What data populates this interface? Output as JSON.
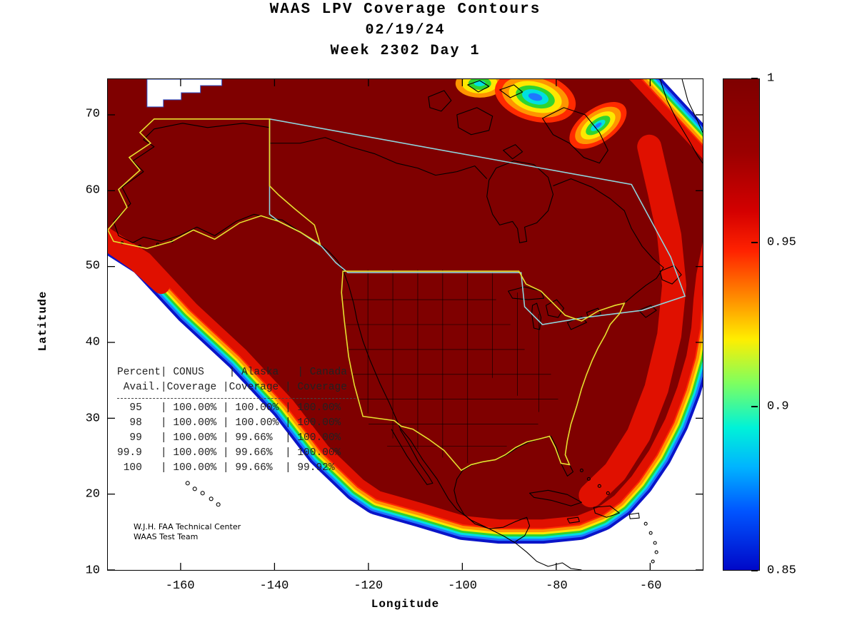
{
  "title": {
    "line1": "WAAS LPV Coverage Contours",
    "line2": "02/19/24",
    "line3": "Week 2302 Day 1"
  },
  "axes": {
    "x_label": "Longitude",
    "y_label": "Latitude",
    "x_ticks": [
      -160,
      -140,
      -120,
      -100,
      -80,
      -60
    ],
    "y_ticks": [
      10,
      20,
      30,
      40,
      50,
      60,
      70
    ]
  },
  "colorbar": {
    "tick_labels": [
      "1",
      "0.95",
      "0.9",
      "0.85"
    ],
    "max": 1,
    "min": 0.85
  },
  "availability_table": {
    "headers": [
      [
        "Percent",
        "CONUS",
        "Alaska",
        "Canada"
      ],
      [
        "Avail.",
        "Coverage",
        "Coverage",
        "Coverage"
      ]
    ],
    "rows": [
      [
        "95",
        "100.00%",
        "100.00%",
        "100.00%"
      ],
      [
        "98",
        "100.00%",
        "100.00%",
        "100.00%"
      ],
      [
        "99",
        "100.00%",
        "99.66%",
        "100.00%"
      ],
      [
        "99.9",
        "100.00%",
        "99.66%",
        "100.00%"
      ],
      [
        "100",
        "100.00%",
        "99.66%",
        "99.92%"
      ]
    ]
  },
  "credit": {
    "line1": "W.J.H. FAA Technical Center",
    "line2": "WAAS Test Team"
  },
  "chart_data": {
    "type": "heatmap",
    "subtype": "filled-contour geographic coverage map (jet colormap)",
    "title": "WAAS LPV Coverage Contours",
    "date": "02/19/24",
    "gps_week": "2302",
    "gps_day": "1",
    "xlabel": "Longitude",
    "ylabel": "Latitude",
    "xlim": [
      -175.5,
      -48.8
    ],
    "ylim": [
      10,
      74.7
    ],
    "x_ticks": [
      -160,
      -140,
      -120,
      -100,
      -80,
      -60
    ],
    "y_ticks": [
      10,
      20,
      30,
      40,
      50,
      60,
      70
    ],
    "colorbar": {
      "range": [
        0.85,
        1
      ],
      "tick_values": [
        1,
        0.95,
        0.9,
        0.85
      ],
      "colormap": "jet",
      "high_coverage_color": "#7f0000"
    },
    "regions": [
      {
        "name": "Alaska service volume",
        "outline_color": "#e6e02f"
      },
      {
        "name": "CONUS service volume",
        "outline_color": "#e6e02f"
      },
      {
        "name": "Canada service volume",
        "outline_color": "#8fd4dc"
      }
    ],
    "coverage_table": {
      "columns": [
        "Percent Avail.",
        "CONUS Coverage",
        "Alaska Coverage",
        "Canada Coverage"
      ],
      "rows": [
        [
          "95",
          "100.00%",
          "100.00%",
          "100.00%"
        ],
        [
          "98",
          "100.00%",
          "100.00%",
          "100.00%"
        ],
        [
          "99",
          "100.00%",
          "99.66%",
          "100.00%"
        ],
        [
          "99.9",
          "100.00%",
          "99.66%",
          "100.00%"
        ],
        [
          "100",
          "100.00%",
          "99.66%",
          "99.92%"
        ]
      ]
    },
    "annotations": [
      "W.J.H. FAA Technical Center",
      "WAAS Test Team"
    ]
  }
}
